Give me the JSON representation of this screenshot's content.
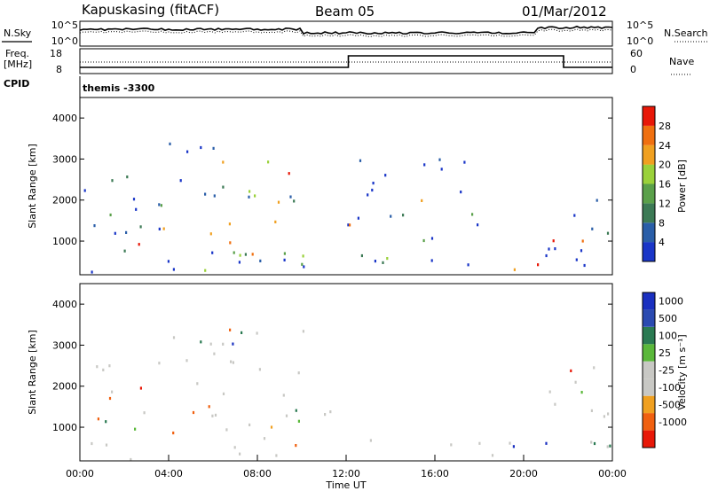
{
  "header": {
    "radar": "Kapuskasing (fitACF)",
    "beam": "Beam 05",
    "date": "01/Mar/2012"
  },
  "summary": {
    "nsky_label": "N.Sky",
    "nsearch_label": "N.Search",
    "freq_label_1": "Freq.",
    "freq_label_2": "[MHz]",
    "nave_label": "Nave",
    "cpid_label": "CPID",
    "cpid_value": "themis -3300",
    "noise_ticks": [
      "10^5",
      "10^0"
    ],
    "noise_ticks_right": [
      "10^5",
      "10^0"
    ],
    "freq_ticks": [
      "18",
      "8"
    ],
    "nave_ticks": [
      "60",
      "0"
    ]
  },
  "colors": {
    "power": [
      "#1a36c8",
      "#2a5ea8",
      "#3c7a55",
      "#5aa04a",
      "#9ad13a",
      "#f0a020",
      "#f07010",
      "#e81808"
    ],
    "velocity": [
      "#e81808",
      "#f06010",
      "#f0a020",
      "#c8c8c4",
      "#c8c8c4",
      "#5ab83a",
      "#2a7a52",
      "#2a4ab0",
      "#1a30c0"
    ]
  },
  "chart_data": [
    {
      "type": "heatmap",
      "name": "power",
      "xlabel": "",
      "ylabel": "Slant Range [km]",
      "xlim": [
        "00:00",
        "24:00"
      ],
      "ylim": [
        180,
        4500
      ],
      "yticks": [
        "1000",
        "2000",
        "3000",
        "4000"
      ],
      "colorbar": {
        "label": "Power [dB]",
        "ticks": [
          "4",
          "8",
          "12",
          "16",
          "20",
          "24",
          "28"
        ]
      },
      "echo_regions": [
        {
          "t0": 0.0,
          "t1": 11.5,
          "r_lo": 200,
          "r_hi": 1500
        },
        {
          "t0": 0.0,
          "t1": 3.5,
          "r_lo": 1600,
          "r_hi": 2600
        },
        {
          "t0": 3.5,
          "t1": 10.2,
          "r_lo": 1700,
          "r_hi": 3400
        },
        {
          "t0": 3.0,
          "t1": 4.5,
          "r_lo": 900,
          "r_hi": 1800
        },
        {
          "t0": 5.8,
          "t1": 7.2,
          "r_lo": 200,
          "r_hi": 800
        },
        {
          "t0": 11.5,
          "t1": 24.0,
          "r_lo": 200,
          "r_hi": 700
        },
        {
          "t0": 12.0,
          "t1": 18.0,
          "r_lo": 1000,
          "r_hi": 3000
        },
        {
          "t0": 21.0,
          "t1": 24.0,
          "r_lo": 500,
          "r_hi": 2500
        }
      ]
    },
    {
      "type": "heatmap",
      "name": "velocity",
      "xlabel": "Time UT",
      "ylabel": "Slant Range [km]",
      "xlim": [
        "00:00",
        "24:00"
      ],
      "ylim": [
        180,
        4500
      ],
      "yticks": [
        "1000",
        "2000",
        "3000",
        "4000"
      ],
      "xticks": [
        "00:00",
        "04:00",
        "08:00",
        "12:00",
        "16:00",
        "20:00",
        "00:00"
      ],
      "colorbar": {
        "label": "Velocity [m s⁻¹]",
        "ticks": [
          "1000",
          "500",
          "100",
          "25",
          "-25",
          "-100",
          "-500",
          "-1000"
        ]
      },
      "echo_regions": [
        {
          "t0": 0.0,
          "t1": 11.5,
          "r_lo": 200,
          "r_hi": 1500
        },
        {
          "t0": 0.0,
          "t1": 3.5,
          "r_lo": 1600,
          "r_hi": 2600
        },
        {
          "t0": 3.5,
          "t1": 10.2,
          "r_lo": 1700,
          "r_hi": 3400
        },
        {
          "t0": 11.5,
          "t1": 24.0,
          "r_lo": 200,
          "r_hi": 700
        },
        {
          "t0": 21.0,
          "t1": 24.0,
          "r_lo": 500,
          "r_hi": 2500
        }
      ]
    }
  ]
}
